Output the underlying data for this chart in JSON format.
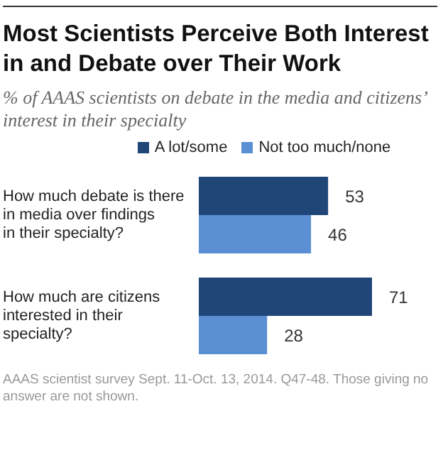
{
  "chart_data": {
    "type": "bar",
    "orientation": "horizontal",
    "title": "Most Scientists Perceive Both Interest in and Debate over Their Work",
    "subtitle": "% of AAAS scientists on debate in the media and citizens’ interest in their specialty",
    "categories": [
      "How much debate is there in media over findings in their specialty?",
      "How much are citizens interested in their specialty?"
    ],
    "series": [
      {
        "name": "A lot/some",
        "color": "#1f4677",
        "values": [
          53,
          71
        ]
      },
      {
        "name": "Not too much/none",
        "color": "#5b8fd4",
        "values": [
          46,
          28
        ]
      }
    ],
    "tick_labels": false,
    "data_labels": true,
    "legend": "top",
    "grid": false,
    "annotations": [
      "AAAS scientist survey Sept. 11-Oct. 13, 2014. Q47-48. Those giving no answer are not shown."
    ]
  }
}
